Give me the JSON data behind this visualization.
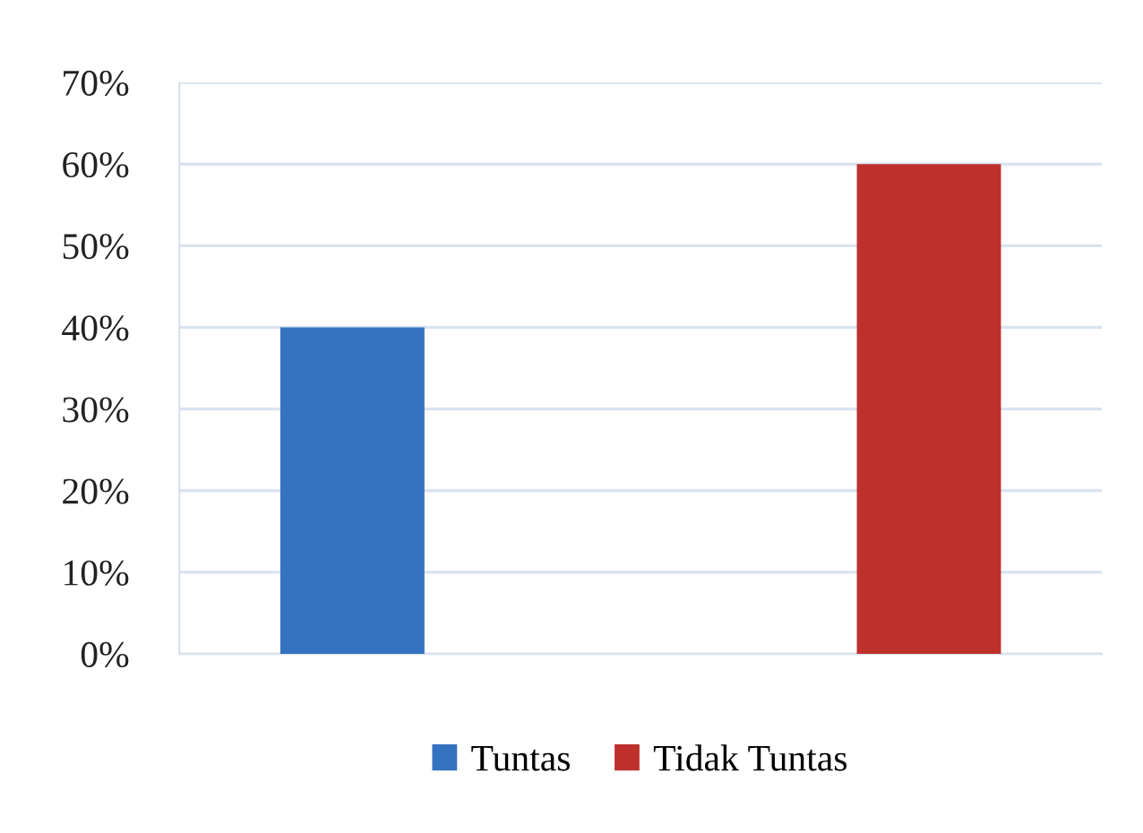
{
  "chart_data": {
    "type": "bar",
    "categories": [
      null,
      null
    ],
    "series": [
      {
        "name": "Tuntas",
        "color": "#3572c0",
        "values": [
          40,
          null
        ]
      },
      {
        "name": "Tidak Tuntas",
        "color": "#bd302c",
        "values": [
          null,
          60
        ]
      }
    ],
    "ylim": [
      0,
      70
    ],
    "yticks": [
      {
        "value": 0,
        "label": "0%"
      },
      {
        "value": 10,
        "label": "10%"
      },
      {
        "value": 20,
        "label": "20%"
      },
      {
        "value": 30,
        "label": "30%"
      },
      {
        "value": 40,
        "label": "40%"
      },
      {
        "value": 50,
        "label": "50%"
      },
      {
        "value": 60,
        "label": "60%"
      },
      {
        "value": 70,
        "label": "70%"
      }
    ],
    "grid": "y",
    "legend": "bottom"
  }
}
